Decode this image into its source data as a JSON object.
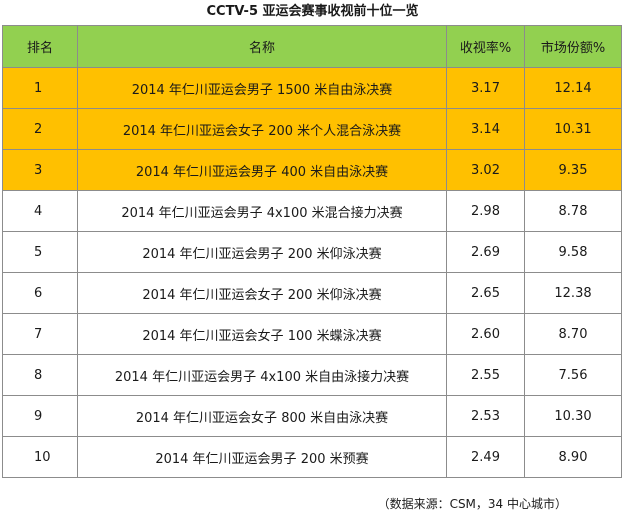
{
  "title": "CCTV-5 亚运会赛事收视前十位一览",
  "table": {
    "headers": [
      "排名",
      "名称",
      "收视率%",
      "市场份额%"
    ],
    "rows": [
      {
        "rank": "1",
        "name": "2014 年仁川亚运会男子 1500 米自由泳决赛",
        "rating": "3.17",
        "share": "12.14",
        "highlight": true
      },
      {
        "rank": "2",
        "name": "2014 年仁川亚运会女子 200 米个人混合泳决赛",
        "rating": "3.14",
        "share": "10.31",
        "highlight": true
      },
      {
        "rank": "3",
        "name": "2014 年仁川亚运会男子 400 米自由泳决赛",
        "rating": "3.02",
        "share": "9.35",
        "highlight": true
      },
      {
        "rank": "4",
        "name": "2014 年仁川亚运会男子 4x100 米混合接力决赛",
        "rating": "2.98",
        "share": "8.78",
        "highlight": false
      },
      {
        "rank": "5",
        "name": "2014 年仁川亚运会男子 200 米仰泳决赛",
        "rating": "2.69",
        "share": "9.58",
        "highlight": false
      },
      {
        "rank": "6",
        "name": "2014 年仁川亚运会女子 200 米仰泳决赛",
        "rating": "2.65",
        "share": "12.38",
        "highlight": false
      },
      {
        "rank": "7",
        "name": "2014 年仁川亚运会女子 100 米蝶泳决赛",
        "rating": "2.60",
        "share": "8.70",
        "highlight": false
      },
      {
        "rank": "8",
        "name": "2014 年仁川亚运会男子 4x100 米自由泳接力决赛",
        "rating": "2.55",
        "share": "7.56",
        "highlight": false
      },
      {
        "rank": "9",
        "name": "2014 年仁川亚运会女子 800 米自由泳决赛",
        "rating": "2.53",
        "share": "10.30",
        "highlight": false
      },
      {
        "rank": "10",
        "name": "2014 年仁川亚运会男子 200 米预赛",
        "rating": "2.49",
        "share": "8.90",
        "highlight": false
      }
    ]
  },
  "source": "（数据来源：CSM，34 中心城市）",
  "colors": {
    "header_bg": "#92d050",
    "highlight_bg": "#ffc000",
    "border": "#8c8c8c"
  }
}
